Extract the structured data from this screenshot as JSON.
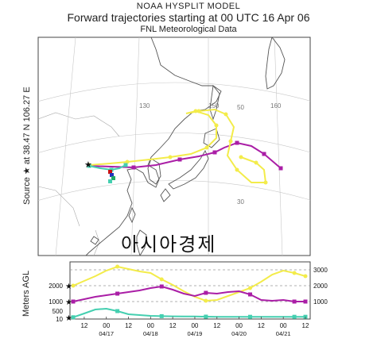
{
  "header": {
    "model": "NOAA HYSPLIT MODEL",
    "title": "Forward trajectories starting at 00 UTC 16 Apr 06",
    "subtitle": "FNL  Meteorological Data"
  },
  "source": {
    "label": "Source ★  at   38.47 N  106.27 E"
  },
  "map": {
    "meridian_labels": [
      "130",
      "150",
      "160"
    ],
    "parallel_labels": [
      "50",
      "30"
    ],
    "watermark": "아시아경제"
  },
  "vertical": {
    "ylabel": "Meters AGL",
    "left_ticks": [
      "2000",
      "1000",
      "500",
      "10"
    ],
    "right_ticks": [
      "3000",
      "2000",
      "1000"
    ]
  },
  "colors": {
    "red": "#cc1111",
    "blue": "#2233bb",
    "green": "#22aa66",
    "yellow": "#f3ec4a",
    "magenta": "#aa1ea6",
    "cyan": "#44cfb0",
    "land": "#ffffff",
    "coast": "#555555"
  },
  "chart_data": {
    "type": "line",
    "title": "Forward trajectories starting at 00 UTC 16 Apr 06",
    "xlabel": "",
    "ylabel": "Meters AGL",
    "x_ticks": [
      "12",
      "00",
      "12",
      "00",
      "12",
      "00",
      "12",
      "00",
      "12",
      "00",
      "12"
    ],
    "date_labels": [
      "04/17",
      "04/18",
      "04/19",
      "04/20",
      "04/21"
    ],
    "x_hours": [
      0,
      6,
      12,
      18,
      24,
      30,
      36,
      42,
      48,
      54,
      60,
      66,
      72,
      78,
      84,
      90,
      96,
      102,
      108,
      114,
      120,
      126
    ],
    "ylim": [
      0,
      3300
    ],
    "series": [
      {
        "color": "yellow",
        "start_height": 2000,
        "heights": [
          2000,
          2300,
          2600,
          2950,
          3200,
          3050,
          2900,
          2800,
          2400,
          2050,
          1650,
          1300,
          1050,
          1100,
          1350,
          1600,
          1850,
          2250,
          2700,
          2950,
          2800,
          2600
        ]
      },
      {
        "color": "magenta",
        "start_height": 1000,
        "heights": [
          1000,
          1150,
          1300,
          1400,
          1500,
          1600,
          1700,
          1850,
          1950,
          1750,
          1500,
          1350,
          1550,
          1500,
          1600,
          1650,
          1450,
          1100,
          1050,
          1100,
          1000,
          1000
        ]
      },
      {
        "color": "cyan",
        "start_height": 10,
        "heights": [
          10,
          250,
          500,
          550,
          400,
          200,
          150,
          100,
          80,
          70,
          60,
          60,
          50,
          40,
          40,
          40,
          40,
          40,
          40,
          40,
          40,
          40
        ]
      }
    ]
  }
}
